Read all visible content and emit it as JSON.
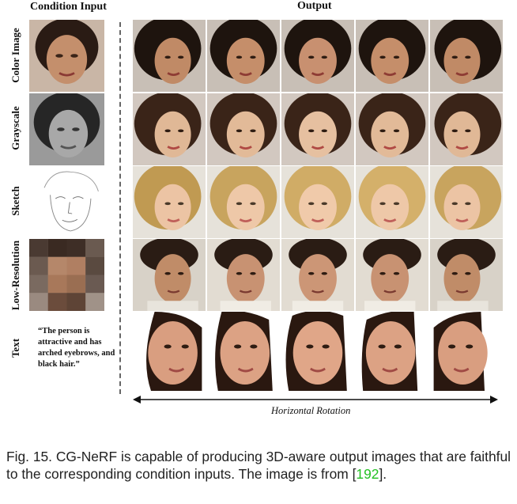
{
  "figure": {
    "condition_header": "Condition Input",
    "output_header": "Output",
    "rows": [
      {
        "label": "Color Image"
      },
      {
        "label": "Grayscale"
      },
      {
        "label": "Sketch"
      },
      {
        "label": "Low-Resolution"
      },
      {
        "label": "Text"
      }
    ],
    "text_condition": "“The person is attractive and has arched eyebrows, and black hair.”",
    "rotation_label": "Horizontal Rotation"
  },
  "caption": {
    "prefix": "Fig. 15.   CG-NeRF is capable of producing 3D-aware output images that are faithful to the corresponding condition inputs. The image is from [",
    "citation": "192",
    "suffix": "]."
  }
}
